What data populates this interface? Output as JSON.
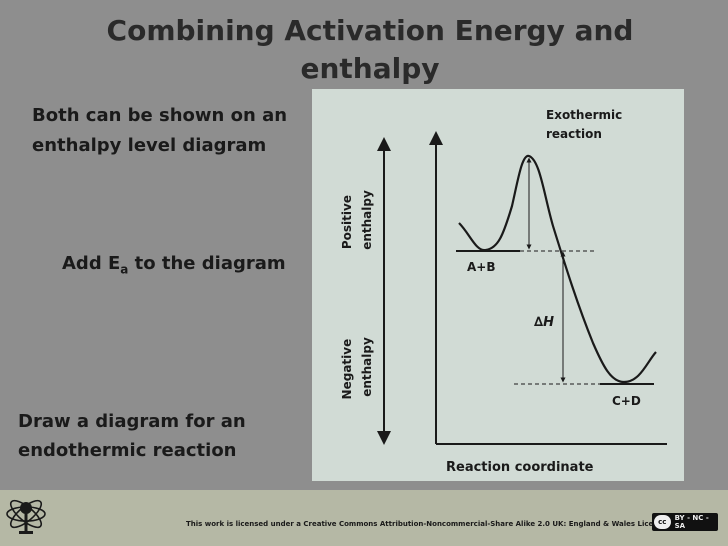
{
  "slide": {
    "title": "Combining Activation Energy and enthalpy",
    "intro": "Both can be shown on an enthalpy level diagram",
    "task_ea": {
      "prefix": "Add E",
      "subscript": "a",
      "suffix": " to the diagram"
    },
    "task_endo": "Draw a diagram for an endothermic reaction"
  },
  "diagram": {
    "positive_label_1": "Positive",
    "positive_label_2": "enthalpy",
    "negative_label_1": "Negative",
    "negative_label_2": "enthalpy",
    "curve_label_1": "Exothermic",
    "curve_label_2": "reaction",
    "reactants": "A+B",
    "products": "C+D",
    "delta_symbol": "∆",
    "delta_var": "H",
    "x_axis_label": "Reaction coordinate"
  },
  "footer": {
    "license": "This work is licensed under a Creative Commons Attribution-Noncommercial-Share Alike 2.0 UK: England & Wales License",
    "cc_mark": "cc",
    "cc_terms": "BY - NC - SA"
  },
  "colors": {
    "background": "#8e8e8e",
    "panel": "#d1dbd5",
    "footer": "#b5b8a5"
  }
}
